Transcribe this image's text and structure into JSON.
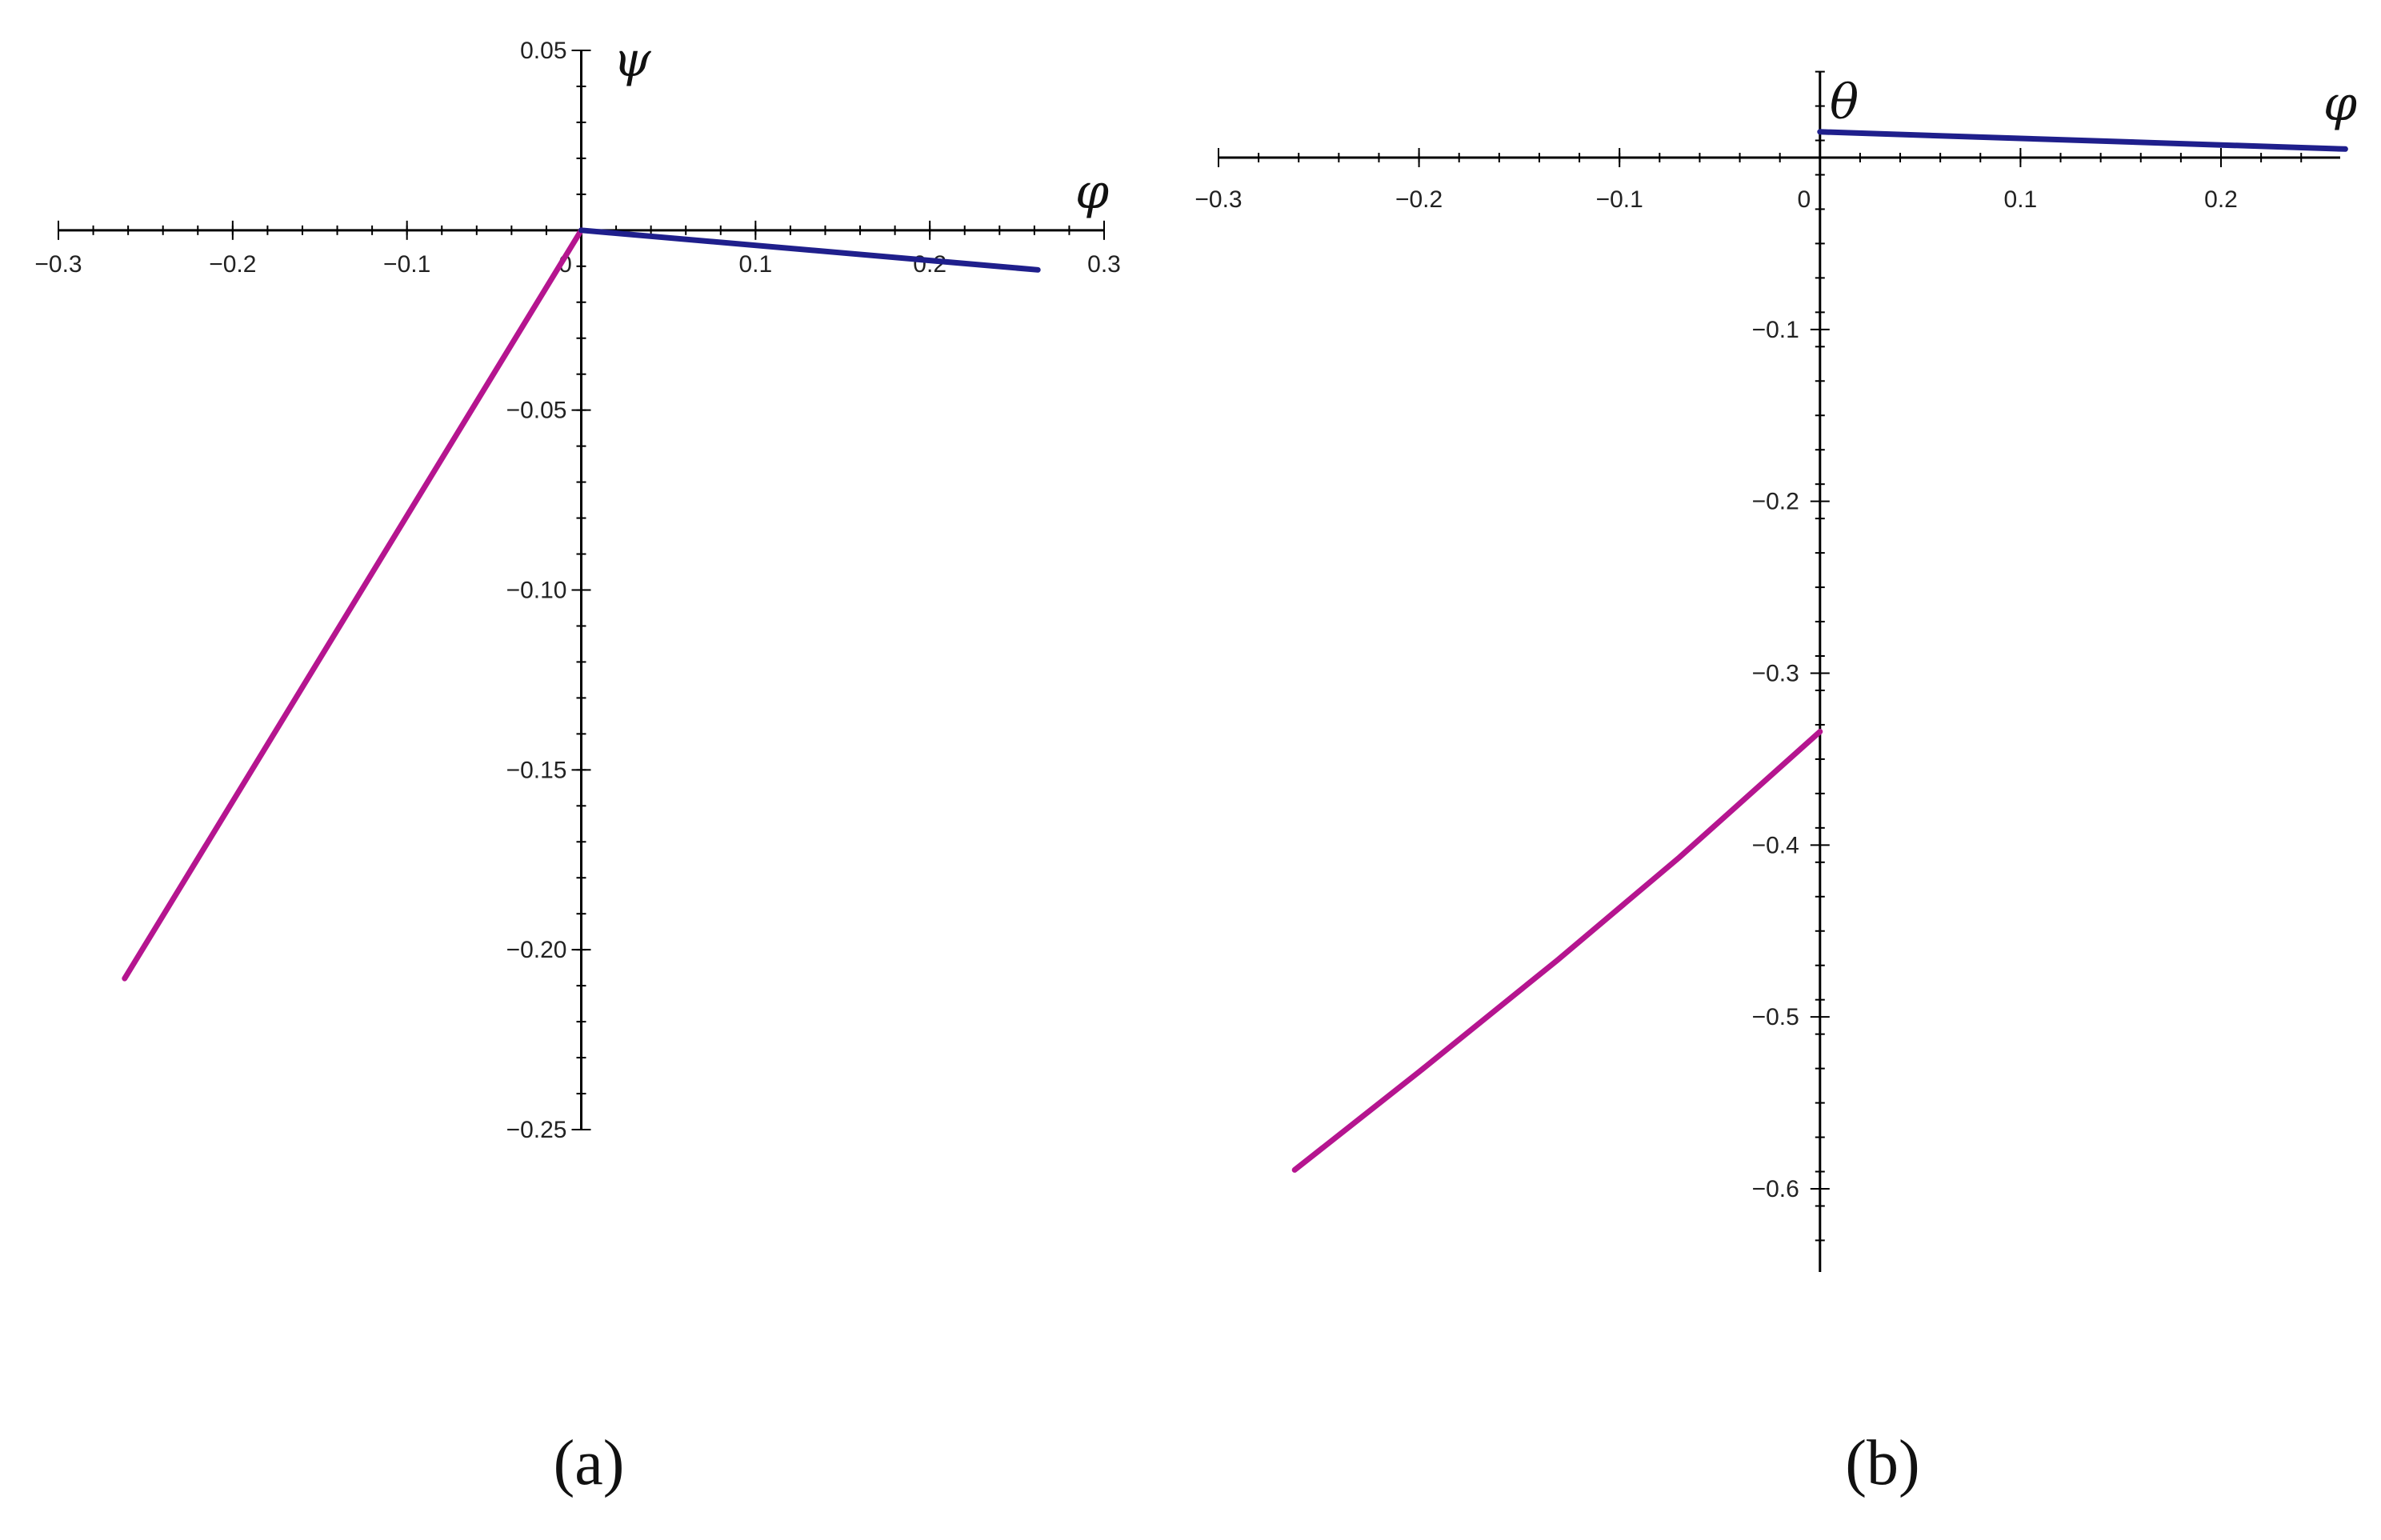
{
  "colors": {
    "series_positive_phi": "#1f1f8c",
    "series_negative_phi": "#b5158f",
    "axis": "#000000"
  },
  "chart_data": [
    {
      "type": "line",
      "panel_label": "(a)",
      "xlabel": "φ",
      "ylabel": "ψ",
      "xlim": [
        -0.3,
        0.3
      ],
      "ylim": [
        -0.25,
        0.05
      ],
      "x_ticks": [
        -0.3,
        -0.2,
        -0.1,
        0,
        0.1,
        0.2,
        0.3
      ],
      "x_tick_labels": [
        "−0.3",
        "−0.2",
        "−0.1",
        "0",
        "0.1",
        "0.2",
        "0.3"
      ],
      "y_ticks": [
        0.05,
        -0.05,
        -0.1,
        -0.15,
        -0.2,
        -0.25
      ],
      "y_tick_labels": [
        "0.05",
        "−0.05",
        "−0.10",
        "−0.15",
        "−0.20",
        "−0.25"
      ],
      "grid": false,
      "series": [
        {
          "color": "#b5158f",
          "x": [
            -0.262,
            0
          ],
          "y": [
            -0.208,
            0
          ]
        },
        {
          "color": "#1f1f8c",
          "x": [
            0,
            0.262
          ],
          "y": [
            0,
            -0.011
          ]
        }
      ]
    },
    {
      "type": "line",
      "panel_label": "(b)",
      "xlabel": "φ",
      "ylabel": "θ",
      "xlim": [
        -0.3,
        0.26
      ],
      "ylim": [
        -0.65,
        0.05
      ],
      "x_ticks": [
        -0.3,
        -0.2,
        -0.1,
        0,
        0.1,
        0.2
      ],
      "x_tick_labels": [
        "−0.3",
        "−0.2",
        "−0.1",
        "0",
        "0.1",
        "0.2"
      ],
      "y_ticks": [
        -0.1,
        -0.2,
        -0.3,
        -0.4,
        -0.5,
        -0.6
      ],
      "y_tick_labels": [
        "−0.1",
        "−0.2",
        "−0.3",
        "−0.4",
        "−0.5",
        "−0.6"
      ],
      "grid": false,
      "series": [
        {
          "color": "#b5158f",
          "x": [
            -0.262,
            -0.2,
            -0.131,
            -0.07,
            0
          ],
          "y": [
            -0.589,
            -0.532,
            -0.467,
            -0.407,
            -0.334
          ]
        },
        {
          "color": "#1f1f8c",
          "x": [
            0,
            0.262
          ],
          "y": [
            0.015,
            0.005
          ]
        }
      ]
    }
  ]
}
